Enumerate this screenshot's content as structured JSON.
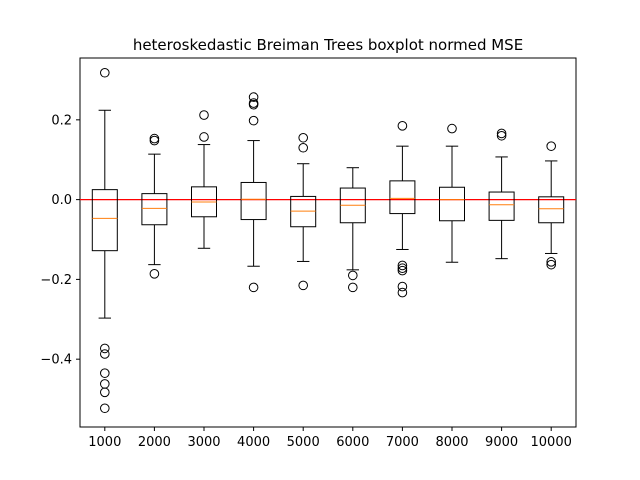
{
  "chart_data": {
    "type": "boxplot",
    "title": "heteroskedastic Breiman Trees boxplot normed MSE",
    "xlabel": "",
    "ylabel": "",
    "categories": [
      "1000",
      "2000",
      "3000",
      "4000",
      "5000",
      "6000",
      "7000",
      "8000",
      "9000",
      "10000"
    ],
    "ylim": [
      -0.57,
      0.355
    ],
    "yticks": [
      -0.4,
      -0.2,
      0.0,
      0.2
    ],
    "ytick_labels": [
      "−0.4",
      "−0.2",
      "0.0",
      "0.2"
    ],
    "reference_line": {
      "y": 0.0,
      "color": "#ff0000"
    },
    "box_color": "#000000",
    "median_color": "#ff7f0e",
    "boxes": [
      {
        "label": "1000",
        "whisker_low": -0.297,
        "q1": -0.128,
        "median": -0.047,
        "q3": 0.025,
        "whisker_high": 0.224,
        "fliers": [
          0.318,
          -0.373,
          -0.387,
          -0.435,
          -0.462,
          -0.483,
          -0.523
        ]
      },
      {
        "label": "2000",
        "whisker_low": -0.163,
        "q1": -0.063,
        "median": -0.022,
        "q3": 0.015,
        "whisker_high": 0.114,
        "fliers": [
          0.153,
          0.148,
          -0.186
        ]
      },
      {
        "label": "3000",
        "whisker_low": -0.122,
        "q1": -0.043,
        "median": -0.006,
        "q3": 0.032,
        "whisker_high": 0.138,
        "fliers": [
          0.212,
          0.157
        ]
      },
      {
        "label": "4000",
        "whisker_low": -0.167,
        "q1": -0.05,
        "median": 0.001,
        "q3": 0.043,
        "whisker_high": 0.148,
        "fliers": [
          0.257,
          0.242,
          0.238,
          0.198,
          -0.22
        ]
      },
      {
        "label": "5000",
        "whisker_low": -0.155,
        "q1": -0.068,
        "median": -0.029,
        "q3": 0.008,
        "whisker_high": 0.09,
        "fliers": [
          0.155,
          0.13,
          -0.215
        ]
      },
      {
        "label": "6000",
        "whisker_low": -0.176,
        "q1": -0.058,
        "median": -0.014,
        "q3": 0.029,
        "whisker_high": 0.08,
        "fliers": [
          -0.19,
          -0.22
        ]
      },
      {
        "label": "7000",
        "whisker_low": -0.125,
        "q1": -0.035,
        "median": 0.003,
        "q3": 0.047,
        "whisker_high": 0.134,
        "fliers": [
          0.185,
          -0.165,
          -0.172,
          -0.178,
          -0.218,
          -0.233
        ]
      },
      {
        "label": "8000",
        "whisker_low": -0.157,
        "q1": -0.053,
        "median": 0.0,
        "q3": 0.031,
        "whisker_high": 0.134,
        "fliers": [
          0.178
        ]
      },
      {
        "label": "9000",
        "whisker_low": -0.148,
        "q1": -0.052,
        "median": -0.013,
        "q3": 0.019,
        "whisker_high": 0.107,
        "fliers": [
          0.166,
          0.16
        ]
      },
      {
        "label": "10000",
        "whisker_low": -0.135,
        "q1": -0.058,
        "median": -0.023,
        "q3": 0.007,
        "whisker_high": 0.097,
        "fliers": [
          0.134,
          -0.156,
          -0.163
        ]
      }
    ]
  }
}
